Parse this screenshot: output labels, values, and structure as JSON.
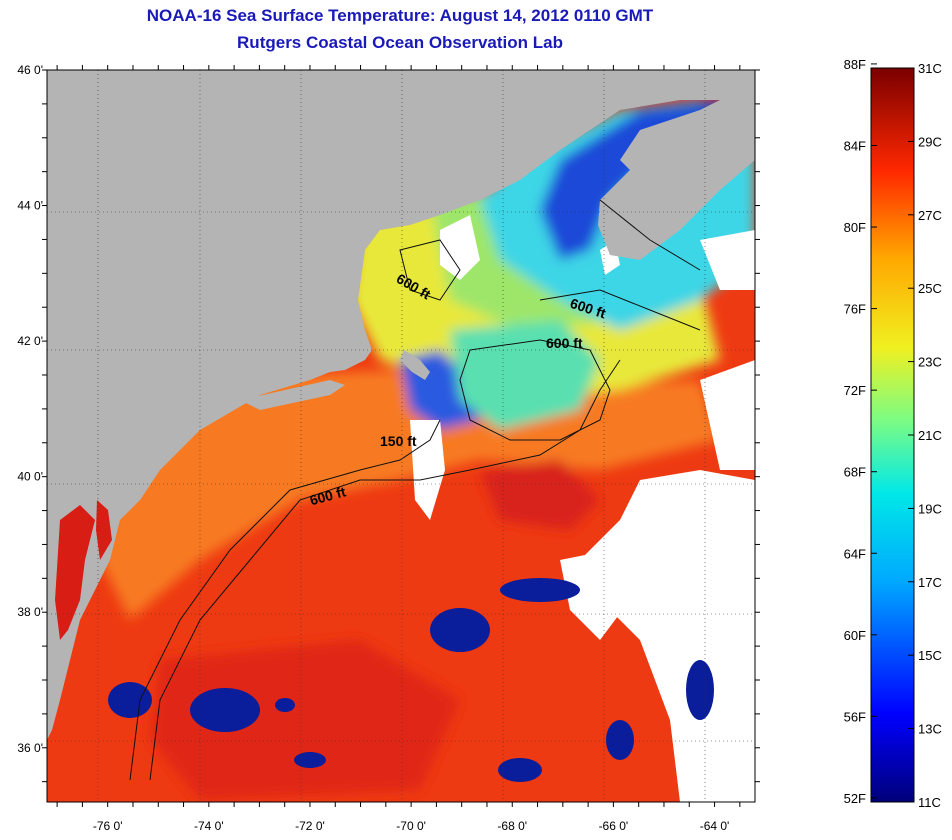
{
  "title": "NOAA-16 Sea Surface Temperature:  August 14, 2012 0110 GMT",
  "subtitle": "Rutgers Coastal Ocean Observation Lab",
  "map": {
    "lat_labels": [
      "46 0'",
      "44 0'",
      "42 0'",
      "40 0'",
      "38 0'",
      "36 0'"
    ],
    "lat_values": [
      46,
      44,
      42,
      40,
      38,
      36
    ],
    "lon_labels": [
      "-76 0'",
      "-74 0'",
      "-72 0'",
      "-70 0'",
      "-68 0'",
      "-66 0'",
      "-64 0'"
    ],
    "lon_values": [
      -76,
      -74,
      -72,
      -70,
      -68,
      -66,
      -64
    ],
    "lon_range": [
      -77.2,
      -63.2
    ],
    "lat_range": [
      35.2,
      46
    ],
    "contour_labels": [
      "600 ft",
      "600 ft",
      "600 ft",
      "150 ft",
      "600 ft"
    ],
    "colors": {
      "land": "#b4b4b4",
      "cloud": "#ffffff",
      "warm": "#f03a10",
      "mid": "#f6e02a",
      "cool": "#28d8e6",
      "cold": "#0a1d9a"
    }
  },
  "colorbar": {
    "fahrenheit_labels": [
      "88F",
      "84F",
      "80F",
      "76F",
      "72F",
      "68F",
      "64F",
      "60F",
      "56F",
      "52F"
    ],
    "celsius_labels": [
      "31C",
      "29C",
      "27C",
      "25C",
      "23C",
      "21C",
      "19C",
      "17C",
      "15C",
      "13C",
      "11C"
    ],
    "range_c": [
      11,
      31
    ]
  }
}
